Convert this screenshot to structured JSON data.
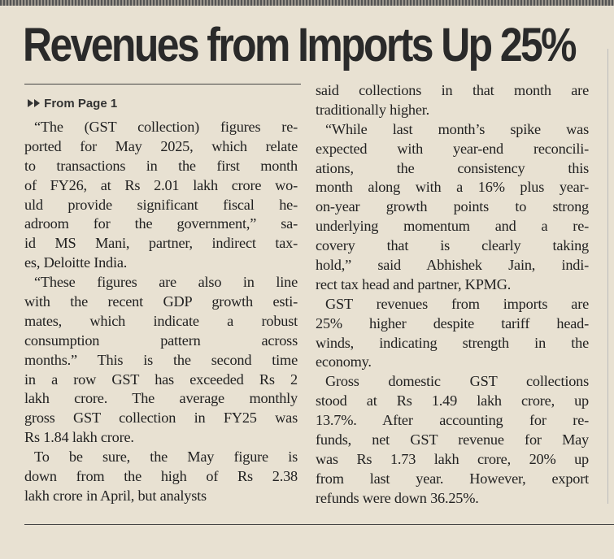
{
  "headline": "Revenues from Imports Up 25%",
  "kicker": "From Page 1",
  "columns": [
    {
      "paragraphs": [
        [
          "“The (GST collection) figures re-",
          "ported for May 2025, which relate",
          "to transactions in the first month",
          "of FY26, at Rs 2.01 lakh crore wo-",
          "uld provide significant fiscal he-",
          "adroom for the government,” sa-",
          "id MS Mani, partner, indirect tax-",
          "es, Deloitte India."
        ],
        [
          "“These figures are also in line",
          "with the recent GDP growth esti-",
          "mates, which indicate a robust",
          "consumption pattern across",
          "months.” This is the second time",
          "in a row GST has exceeded Rs 2",
          "lakh crore. The average monthly",
          "gross GST collection in FY25 was",
          "Rs 1.84 lakh crore."
        ],
        [
          "To be sure, the May figure is",
          "down from the high of Rs 2.38",
          "lakh crore in April, but analysts"
        ]
      ]
    },
    {
      "paragraphs": [
        [
          "said collections in that month are",
          "traditionally higher."
        ],
        [
          "“While last month’s spike was",
          "expected with year-end reconcili-",
          "ations, the consistency this",
          "month along with a 16% plus year-",
          "on-year growth points to strong",
          "underlying momentum and a re-",
          "covery that is clearly taking",
          "hold,” said Abhishek Jain, indi-",
          "rect tax head and partner, KPMG."
        ],
        [
          "GST revenues from imports are",
          "25% higher despite tariff head-",
          "winds, indicating strength in the",
          "economy."
        ],
        [
          "Gross domestic GST collections",
          "stood at Rs 1.49 lakh crore, up",
          "13.7%. After accounting for re-",
          "funds, net GST revenue for May",
          "was Rs 1.73 lakh crore, 20% up",
          "from last year. However, export",
          "refunds were down 36.25%."
        ]
      ]
    }
  ]
}
